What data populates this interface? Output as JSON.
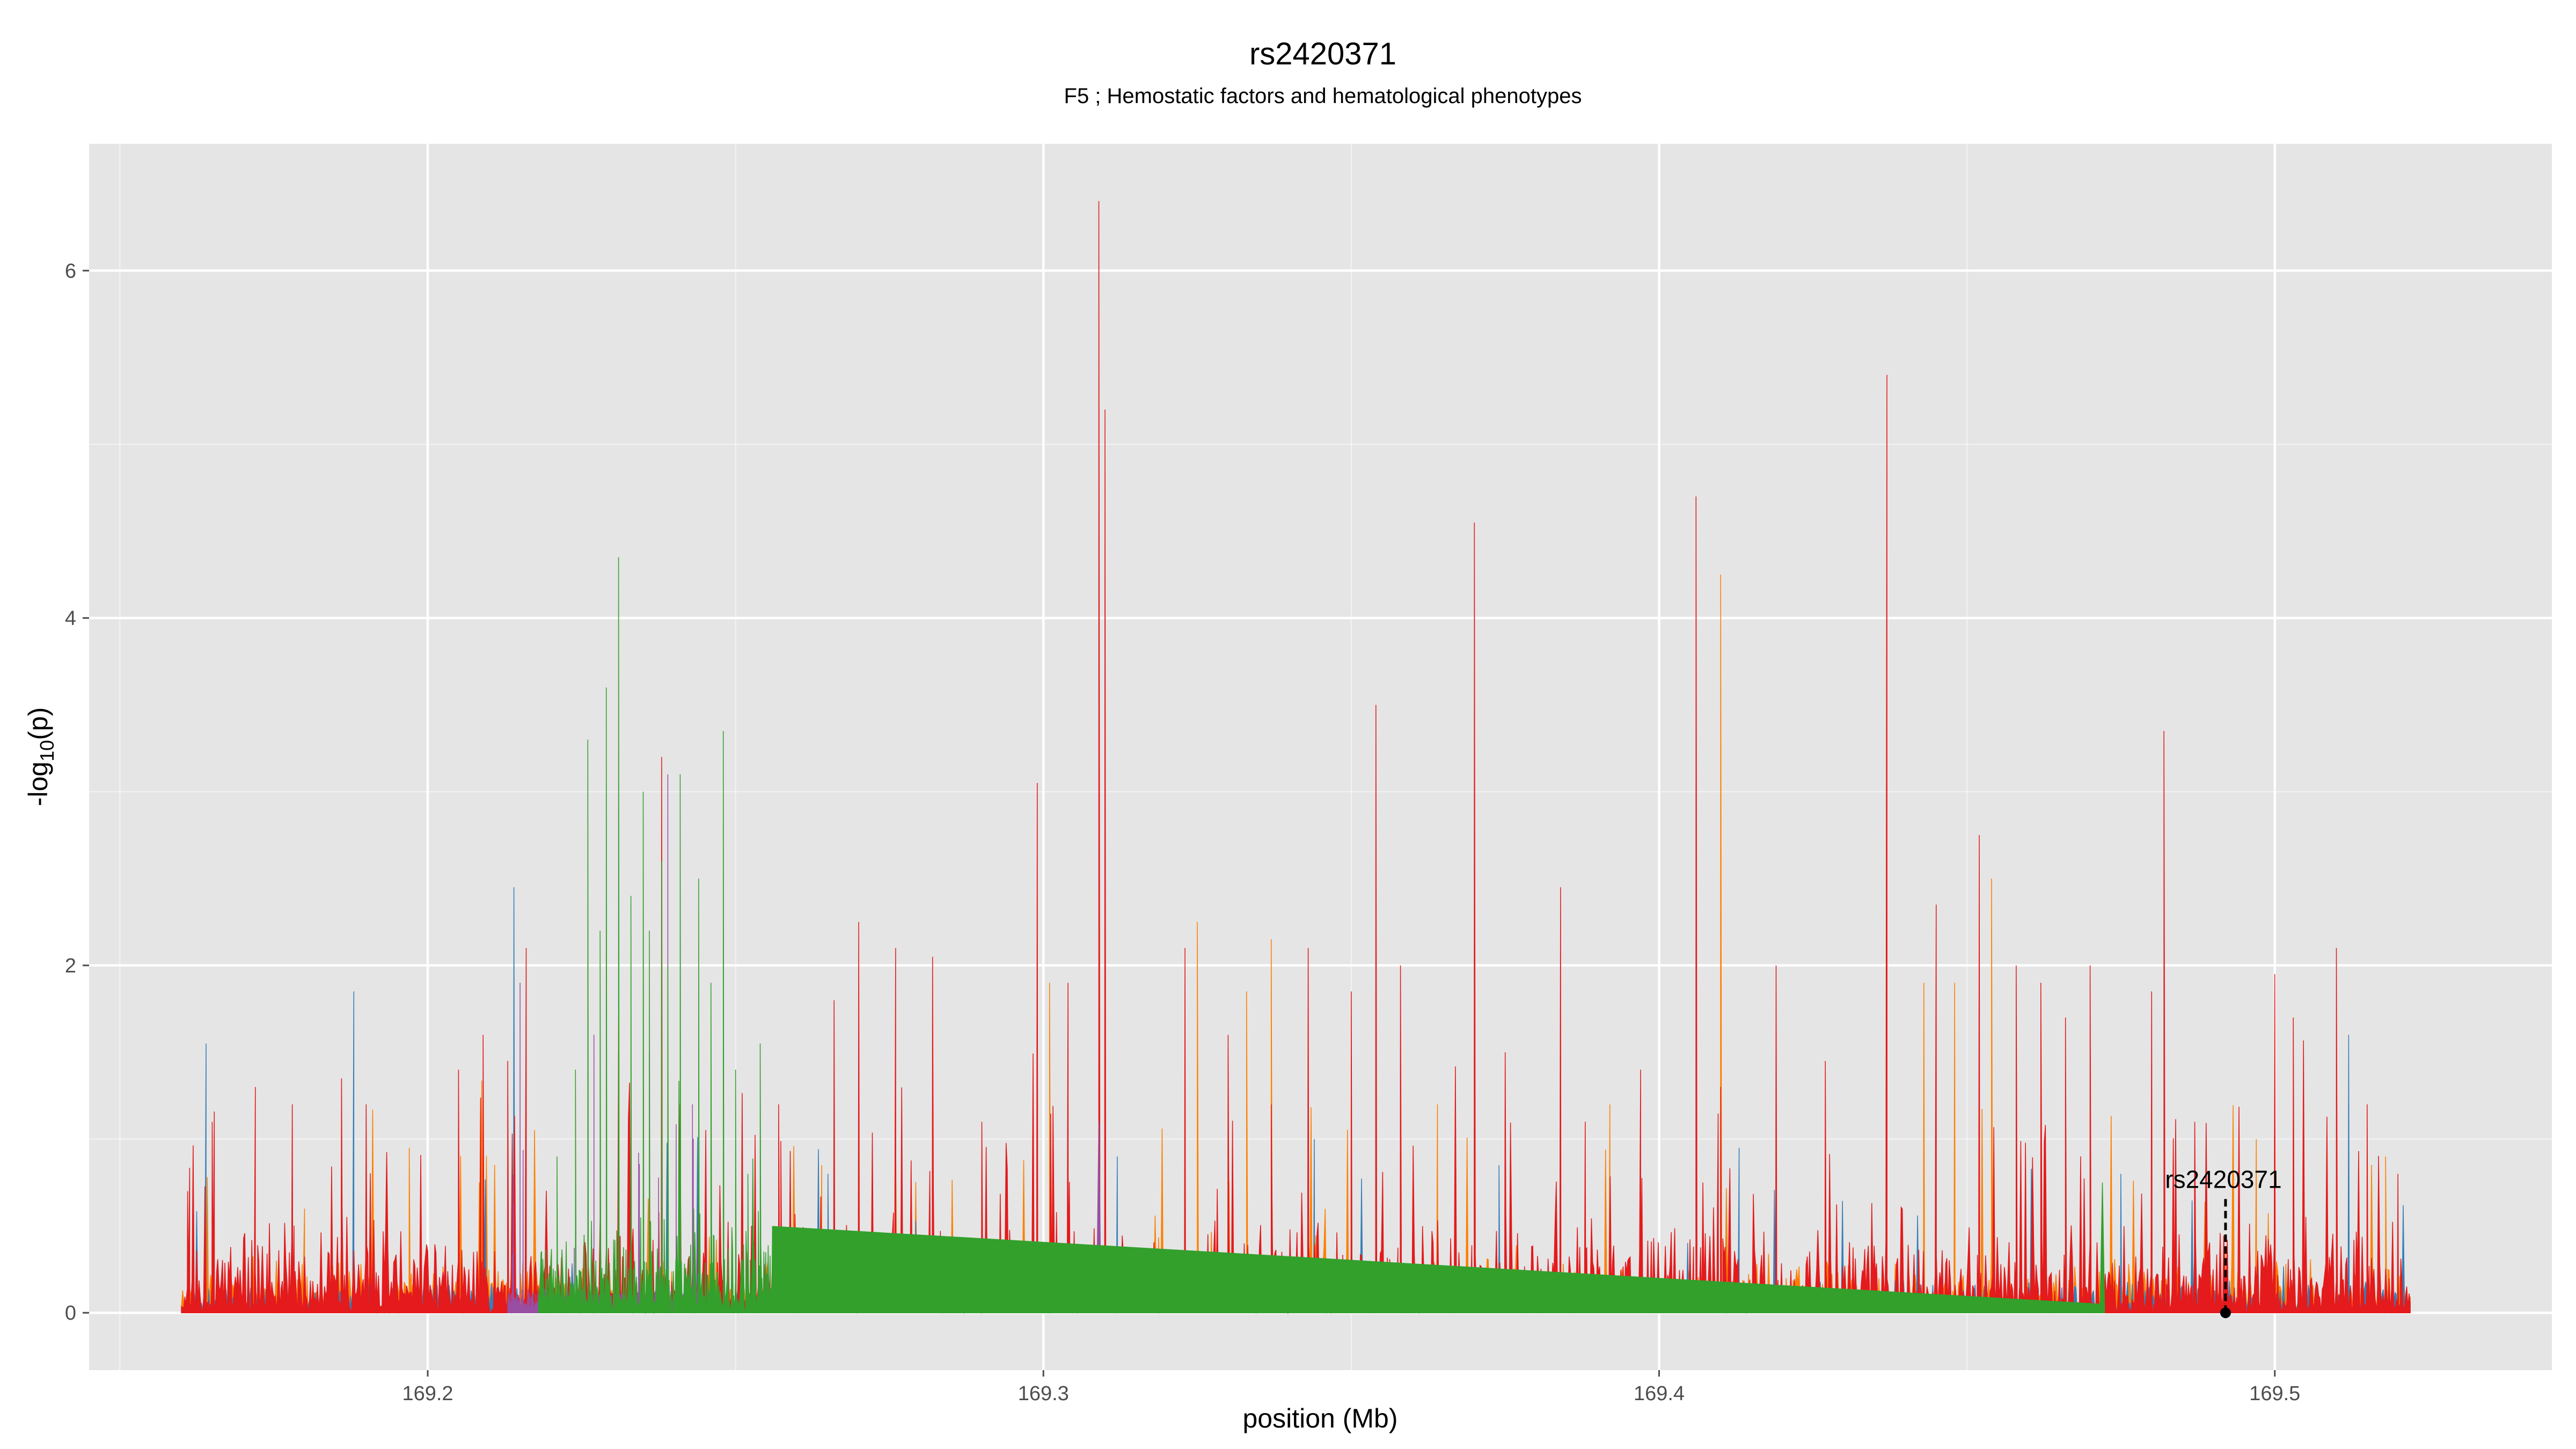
{
  "chart_data": {
    "type": "area",
    "title": "rs2420371",
    "subtitle": "F5 ; Hemostatic factors and hematological phenotypes",
    "xlabel": "position (Mb)",
    "ylabel": "-log10(p)",
    "ylabel_parts": {
      "prefix": "-log",
      "sub": "10",
      "suffix": "(p)"
    },
    "xlim": [
      169.145,
      169.545
    ],
    "ylim": [
      -0.33,
      6.73
    ],
    "x_ticks": [
      169.2,
      169.3,
      169.4,
      169.5
    ],
    "x_tick_labels": [
      "169.2",
      "169.3",
      "169.4",
      "169.5"
    ],
    "y_ticks": [
      0,
      2,
      4,
      6
    ],
    "y_tick_labels": [
      "0",
      "2",
      "4",
      "6"
    ],
    "grid": true,
    "legend": "none",
    "background": "#e5e5e5",
    "grid_color": "#ffffff",
    "series": [
      {
        "color": "#e41a1c",
        "peaks": [
          [
            169.161,
            0.7
          ],
          [
            169.165,
            1.1
          ],
          [
            169.172,
            1.3
          ],
          [
            169.178,
            1.2
          ],
          [
            169.186,
            1.35
          ],
          [
            169.19,
            1.2
          ],
          [
            169.205,
            1.4
          ],
          [
            169.209,
            1.6
          ],
          [
            169.213,
            1.45
          ],
          [
            169.216,
            2.1
          ],
          [
            169.231,
            1.5
          ],
          [
            169.238,
            3.2
          ],
          [
            169.257,
            1.2
          ],
          [
            169.266,
            1.8
          ],
          [
            169.27,
            2.25
          ],
          [
            169.276,
            2.1
          ],
          [
            169.282,
            2.05
          ],
          [
            169.29,
            1.1
          ],
          [
            169.299,
            3.05
          ],
          [
            169.304,
            1.9
          ],
          [
            169.309,
            6.4
          ],
          [
            169.31,
            5.2
          ],
          [
            169.323,
            2.1
          ],
          [
            169.33,
            1.6
          ],
          [
            169.337,
            1.2
          ],
          [
            169.343,
            2.1
          ],
          [
            169.35,
            1.85
          ],
          [
            169.354,
            3.5
          ],
          [
            169.358,
            2.0
          ],
          [
            169.37,
            4.55
          ],
          [
            169.375,
            1.5
          ],
          [
            169.384,
            2.45
          ],
          [
            169.388,
            1.1
          ],
          [
            169.397,
            1.4
          ],
          [
            169.406,
            4.7
          ],
          [
            169.41,
            1.3
          ],
          [
            169.419,
            2.0
          ],
          [
            169.427,
            1.45
          ],
          [
            169.437,
            5.4
          ],
          [
            169.445,
            2.35
          ],
          [
            169.452,
            2.75
          ],
          [
            169.458,
            2.0
          ],
          [
            169.462,
            1.9
          ],
          [
            169.466,
            1.7
          ],
          [
            169.47,
            2.0
          ],
          [
            169.48,
            1.85
          ],
          [
            169.482,
            3.35
          ],
          [
            169.487,
            1.1
          ],
          [
            169.5,
            1.95
          ],
          [
            169.503,
            1.7
          ],
          [
            169.51,
            2.1
          ],
          [
            169.515,
            1.2
          ],
          [
            169.52,
            0.8
          ]
        ]
      },
      {
        "color": "#ff7f00",
        "peaks": [
          [
            169.18,
            0.6
          ],
          [
            169.188,
            0.7
          ],
          [
            169.197,
            0.95
          ],
          [
            169.231,
            1.7
          ],
          [
            169.264,
            0.85
          ],
          [
            169.301,
            1.9
          ],
          [
            169.325,
            2.25
          ],
          [
            169.333,
            1.85
          ],
          [
            169.337,
            2.15
          ],
          [
            169.364,
            1.2
          ],
          [
            169.392,
            1.2
          ],
          [
            169.41,
            4.25
          ],
          [
            169.443,
            1.9
          ],
          [
            169.448,
            1.9
          ],
          [
            169.454,
            2.5
          ],
          [
            169.497,
            1.0
          ],
          [
            169.518,
            0.9
          ]
        ]
      },
      {
        "color": "#377eb8",
        "peaks": [
          [
            169.164,
            1.55
          ],
          [
            169.188,
            1.85
          ],
          [
            169.214,
            2.45
          ],
          [
            169.265,
            0.8
          ],
          [
            169.312,
            0.9
          ],
          [
            169.344,
            1.0
          ],
          [
            169.374,
            0.85
          ],
          [
            169.413,
            0.95
          ],
          [
            169.452,
            1.0
          ],
          [
            169.475,
            0.8
          ],
          [
            169.512,
            1.6
          ]
        ]
      },
      {
        "color": "#33a02c",
        "peaks": [
          [
            169.221,
            0.9
          ],
          [
            169.224,
            1.4
          ],
          [
            169.226,
            3.3
          ],
          [
            169.228,
            2.2
          ],
          [
            169.229,
            3.6
          ],
          [
            169.231,
            4.35
          ],
          [
            169.233,
            2.4
          ],
          [
            169.235,
            3.0
          ],
          [
            169.236,
            2.2
          ],
          [
            169.238,
            2.6
          ],
          [
            169.239,
            2.0
          ],
          [
            169.241,
            3.1
          ],
          [
            169.244,
            2.5
          ],
          [
            169.246,
            1.9
          ],
          [
            169.248,
            3.35
          ],
          [
            169.25,
            1.4
          ],
          [
            169.252,
            0.8
          ],
          [
            169.254,
            1.55
          ],
          [
            169.472,
            0.75
          ]
        ]
      },
      {
        "color": "#984ea3",
        "peaks": [
          [
            169.215,
            1.9
          ],
          [
            169.227,
            1.6
          ],
          [
            169.236,
            1.5
          ],
          [
            169.239,
            3.1
          ],
          [
            169.243,
            1.2
          ],
          [
            169.309,
            1.1
          ]
        ]
      }
    ],
    "x_range": [
      169.16,
      169.522
    ],
    "annotation": {
      "label": "rs2420371",
      "x": 169.492,
      "y": 0,
      "line_top": 0.67
    }
  }
}
